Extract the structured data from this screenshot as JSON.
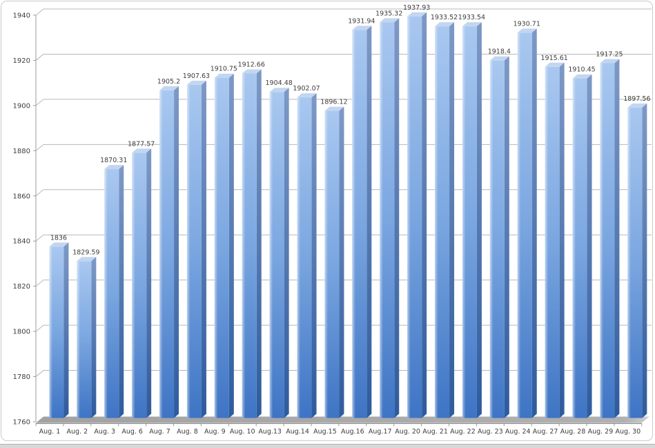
{
  "chart_data": {
    "type": "bar",
    "style": "3d-column",
    "title": "",
    "xlabel": "",
    "ylabel": "",
    "categories": [
      "Aug. 1",
      "Aug. 2",
      "Aug. 3",
      "Aug. 6",
      "Aug. 7",
      "Aug. 8",
      "Aug. 9",
      "Aug. 10",
      "Aug.13",
      "Aug.14",
      "Aug.15",
      "Aug.16",
      "Aug.17",
      "Aug. 20",
      "Aug. 21",
      "Aug. 22",
      "Aug. 23",
      "Aug. 24",
      "Aug. 27",
      "Aug. 28",
      "Aug. 29",
      "Aug. 30"
    ],
    "values": [
      1836,
      1829.59,
      1870.31,
      1877.57,
      1905.2,
      1907.63,
      1910.75,
      1912.66,
      1904.48,
      1902.07,
      1896.12,
      1931.94,
      1935.32,
      1937.93,
      1933.52,
      1933.54,
      1918.4,
      1930.71,
      1915.61,
      1910.45,
      1917.25,
      1897.56
    ],
    "value_labels": [
      "1836",
      "1829.59",
      "1870.31",
      "1877.57",
      "1905.2",
      "1907.63",
      "1910.75",
      "1912.66",
      "1904.48",
      "1902.07",
      "1896.12",
      "1931.94",
      "1935.32",
      "1937.93",
      "1933.52",
      "1933.54",
      "1918.4",
      "1930.71",
      "1915.61",
      "1910.45",
      "1917.25",
      "1897.56"
    ],
    "y_ticks": [
      "1940",
      "1920",
      "1900",
      "1880",
      "1860",
      "1840",
      "1820",
      "1800",
      "1780",
      "1760"
    ],
    "y_tick_values": [
      1940,
      1920,
      1900,
      1880,
      1860,
      1840,
      1820,
      1800,
      1780,
      1760
    ],
    "ylim": [
      1760,
      1940
    ],
    "grid": true,
    "legend": "none",
    "colors": {
      "bar_front_top": "#a9c8f0",
      "bar_front_mid": "#7aa6e0",
      "bar_front_bottom": "#3e74c4",
      "bar_side_top": "#7e99c6",
      "bar_side_bottom": "#2e5b9d",
      "bar_top_face": "#c3d6f0",
      "gridline": "#b7b7b7",
      "axis": "#9b9b9b",
      "text": "#3d3d3d",
      "floor": "#ababab",
      "floor_edge": "#8f8f8f"
    }
  }
}
